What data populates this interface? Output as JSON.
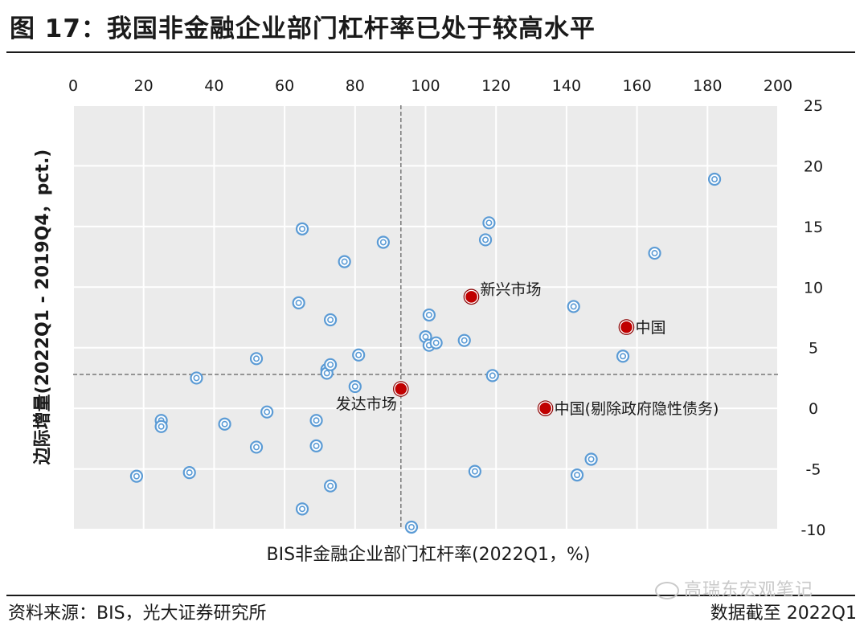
{
  "figure": {
    "title": "图 17：我国非金融企业部门杠杆率已处于较高水平",
    "source": "资料来源：BIS，光大证券研究所",
    "note": "数据截至 2022Q1",
    "watermark": "高瑞东宏观笔记"
  },
  "colors": {
    "plot_background": "#ebebeb",
    "grid": "#ffffff",
    "country_marker": "#5b9bd5",
    "highlight_marker": "#c00000",
    "reference_line": "#7f7f7f"
  },
  "chart_data": {
    "type": "scatter",
    "xlabel": "BIS非金融企业部门杠杆率(2022Q1，%)",
    "ylabel": "边际增量(2022Q1 - 2019Q4，pct.)",
    "xlim": [
      0,
      200
    ],
    "ylim": [
      -10,
      25
    ],
    "xticks": [
      "0",
      "20",
      "40",
      "60",
      "80",
      "100",
      "120",
      "140",
      "160",
      "180",
      "200"
    ],
    "yticks": [
      "25",
      "20",
      "15",
      "10",
      "5",
      "0",
      "-5",
      "-10"
    ],
    "x_axis_position": "top",
    "y_axis_position": "right",
    "grid": true,
    "reference_lines": {
      "x": 93,
      "y": 2.8
    },
    "series": [
      {
        "points": [
          [
            18,
            -5.6
          ],
          [
            25,
            -1
          ],
          [
            25,
            -1.5
          ],
          [
            33,
            -5.3
          ],
          [
            35,
            2.5
          ],
          [
            43,
            -1.3
          ],
          [
            52,
            4.1
          ],
          [
            52,
            -3.2
          ],
          [
            55,
            -0.3
          ],
          [
            64,
            8.7
          ],
          [
            65,
            -8.3
          ],
          [
            65,
            14.8
          ],
          [
            69,
            -1
          ],
          [
            69,
            -3.1
          ],
          [
            72,
            3.2
          ],
          [
            72,
            2.9
          ],
          [
            73,
            3.6
          ],
          [
            73,
            -6.4
          ],
          [
            73,
            7.3
          ],
          [
            77,
            12.1
          ],
          [
            80,
            1.8
          ],
          [
            81,
            4.4
          ],
          [
            88,
            13.7
          ],
          [
            96,
            -9.8
          ],
          [
            100,
            5.9
          ],
          [
            101,
            5.2
          ],
          [
            101,
            7.7
          ],
          [
            103,
            5.4
          ],
          [
            111,
            5.6
          ],
          [
            114,
            -5.2
          ],
          [
            117,
            13.9
          ],
          [
            118,
            15.3
          ],
          [
            119,
            2.7
          ],
          [
            142,
            8.4
          ],
          [
            143,
            -5.5
          ],
          [
            147,
            -4.2
          ],
          [
            156,
            4.3
          ],
          [
            165,
            12.8
          ],
          [
            182,
            18.9
          ]
        ]
      },
      {
        "highlight": true,
        "points": [
          {
            "x": 93,
            "y": 1.6,
            "label": "发达市场"
          },
          {
            "x": 113,
            "y": 9.2,
            "label": "新兴市场"
          },
          {
            "x": 157,
            "y": 6.7,
            "label": "中国"
          },
          {
            "x": 134,
            "y": 0,
            "label": "中国(剔除政府隐性债务)"
          }
        ]
      }
    ]
  }
}
